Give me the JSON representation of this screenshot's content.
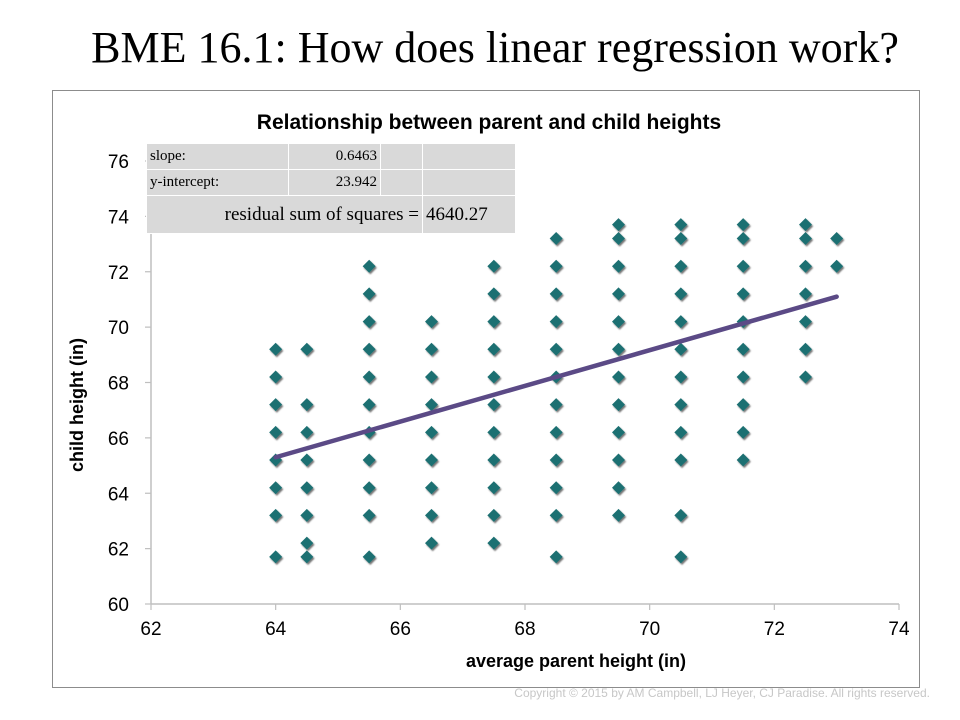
{
  "slide": {
    "title": "BME 16.1: How does linear regression work?",
    "footer": "Copyright © 2015 by AM Campbell, LJ Heyer, CJ Paradise. All rights reserved."
  },
  "stats": {
    "slope_label": "slope:",
    "slope_value": "0.6463",
    "intercept_label": "y-intercept:",
    "intercept_value": "23.942",
    "rss_label": "residual sum of squares =",
    "rss_value": "4640.27"
  },
  "chart_data": {
    "type": "scatter",
    "title": "Relationship between parent and child heights",
    "xlabel": "average parent height (in)",
    "ylabel": "child height (in)",
    "xlim": [
      62,
      74
    ],
    "ylim": [
      60,
      76
    ],
    "xticks": [
      62,
      64,
      66,
      68,
      70,
      72,
      74
    ],
    "yticks": [
      60,
      62,
      64,
      66,
      68,
      70,
      72,
      74,
      76
    ],
    "grid": false,
    "colors": {
      "marker": "#1f6f72",
      "line": "#5b4a86",
      "axis": "#bfbfbf",
      "stats_bg": "#d9d9d9"
    },
    "series": [
      {
        "type": "scatter",
        "points": [
          [
            64,
            61.7
          ],
          [
            64,
            63.2
          ],
          [
            64,
            64.2
          ],
          [
            64,
            65.2
          ],
          [
            64,
            66.2
          ],
          [
            64,
            67.2
          ],
          [
            64,
            68.2
          ],
          [
            64,
            69.2
          ],
          [
            64.5,
            61.7
          ],
          [
            64.5,
            62.2
          ],
          [
            64.5,
            63.2
          ],
          [
            64.5,
            64.2
          ],
          [
            64.5,
            65.2
          ],
          [
            64.5,
            66.2
          ],
          [
            64.5,
            67.2
          ],
          [
            64.5,
            69.2
          ],
          [
            65.5,
            61.7
          ],
          [
            65.5,
            63.2
          ],
          [
            65.5,
            64.2
          ],
          [
            65.5,
            65.2
          ],
          [
            65.5,
            66.2
          ],
          [
            65.5,
            67.2
          ],
          [
            65.5,
            68.2
          ],
          [
            65.5,
            69.2
          ],
          [
            65.5,
            70.2
          ],
          [
            65.5,
            71.2
          ],
          [
            65.5,
            72.2
          ],
          [
            66.5,
            62.2
          ],
          [
            66.5,
            63.2
          ],
          [
            66.5,
            64.2
          ],
          [
            66.5,
            65.2
          ],
          [
            66.5,
            66.2
          ],
          [
            66.5,
            67.2
          ],
          [
            66.5,
            68.2
          ],
          [
            66.5,
            69.2
          ],
          [
            66.5,
            70.2
          ],
          [
            67.5,
            62.2
          ],
          [
            67.5,
            63.2
          ],
          [
            67.5,
            64.2
          ],
          [
            67.5,
            65.2
          ],
          [
            67.5,
            66.2
          ],
          [
            67.5,
            67.2
          ],
          [
            67.5,
            68.2
          ],
          [
            67.5,
            69.2
          ],
          [
            67.5,
            70.2
          ],
          [
            67.5,
            71.2
          ],
          [
            67.5,
            72.2
          ],
          [
            68.5,
            61.7
          ],
          [
            68.5,
            63.2
          ],
          [
            68.5,
            64.2
          ],
          [
            68.5,
            65.2
          ],
          [
            68.5,
            66.2
          ],
          [
            68.5,
            67.2
          ],
          [
            68.5,
            68.2
          ],
          [
            68.5,
            69.2
          ],
          [
            68.5,
            70.2
          ],
          [
            68.5,
            71.2
          ],
          [
            68.5,
            72.2
          ],
          [
            68.5,
            73.2
          ],
          [
            69.5,
            63.2
          ],
          [
            69.5,
            64.2
          ],
          [
            69.5,
            65.2
          ],
          [
            69.5,
            66.2
          ],
          [
            69.5,
            67.2
          ],
          [
            69.5,
            68.2
          ],
          [
            69.5,
            69.2
          ],
          [
            69.5,
            70.2
          ],
          [
            69.5,
            71.2
          ],
          [
            69.5,
            72.2
          ],
          [
            69.5,
            73.2
          ],
          [
            69.5,
            73.7
          ],
          [
            70.5,
            61.7
          ],
          [
            70.5,
            63.2
          ],
          [
            70.5,
            65.2
          ],
          [
            70.5,
            66.2
          ],
          [
            70.5,
            67.2
          ],
          [
            70.5,
            68.2
          ],
          [
            70.5,
            69.2
          ],
          [
            70.5,
            70.2
          ],
          [
            70.5,
            71.2
          ],
          [
            70.5,
            72.2
          ],
          [
            70.5,
            73.2
          ],
          [
            70.5,
            73.7
          ],
          [
            71.5,
            65.2
          ],
          [
            71.5,
            66.2
          ],
          [
            71.5,
            67.2
          ],
          [
            71.5,
            68.2
          ],
          [
            71.5,
            69.2
          ],
          [
            71.5,
            70.2
          ],
          [
            71.5,
            71.2
          ],
          [
            71.5,
            72.2
          ],
          [
            71.5,
            73.2
          ],
          [
            71.5,
            73.7
          ],
          [
            72.5,
            68.2
          ],
          [
            72.5,
            69.2
          ],
          [
            72.5,
            70.2
          ],
          [
            72.5,
            71.2
          ],
          [
            72.5,
            72.2
          ],
          [
            72.5,
            73.2
          ],
          [
            72.5,
            73.7
          ],
          [
            73,
            72.2
          ],
          [
            73,
            73.2
          ]
        ]
      },
      {
        "type": "line",
        "x": [
          64,
          73
        ],
        "y": [
          65.3,
          71.1
        ]
      }
    ]
  }
}
